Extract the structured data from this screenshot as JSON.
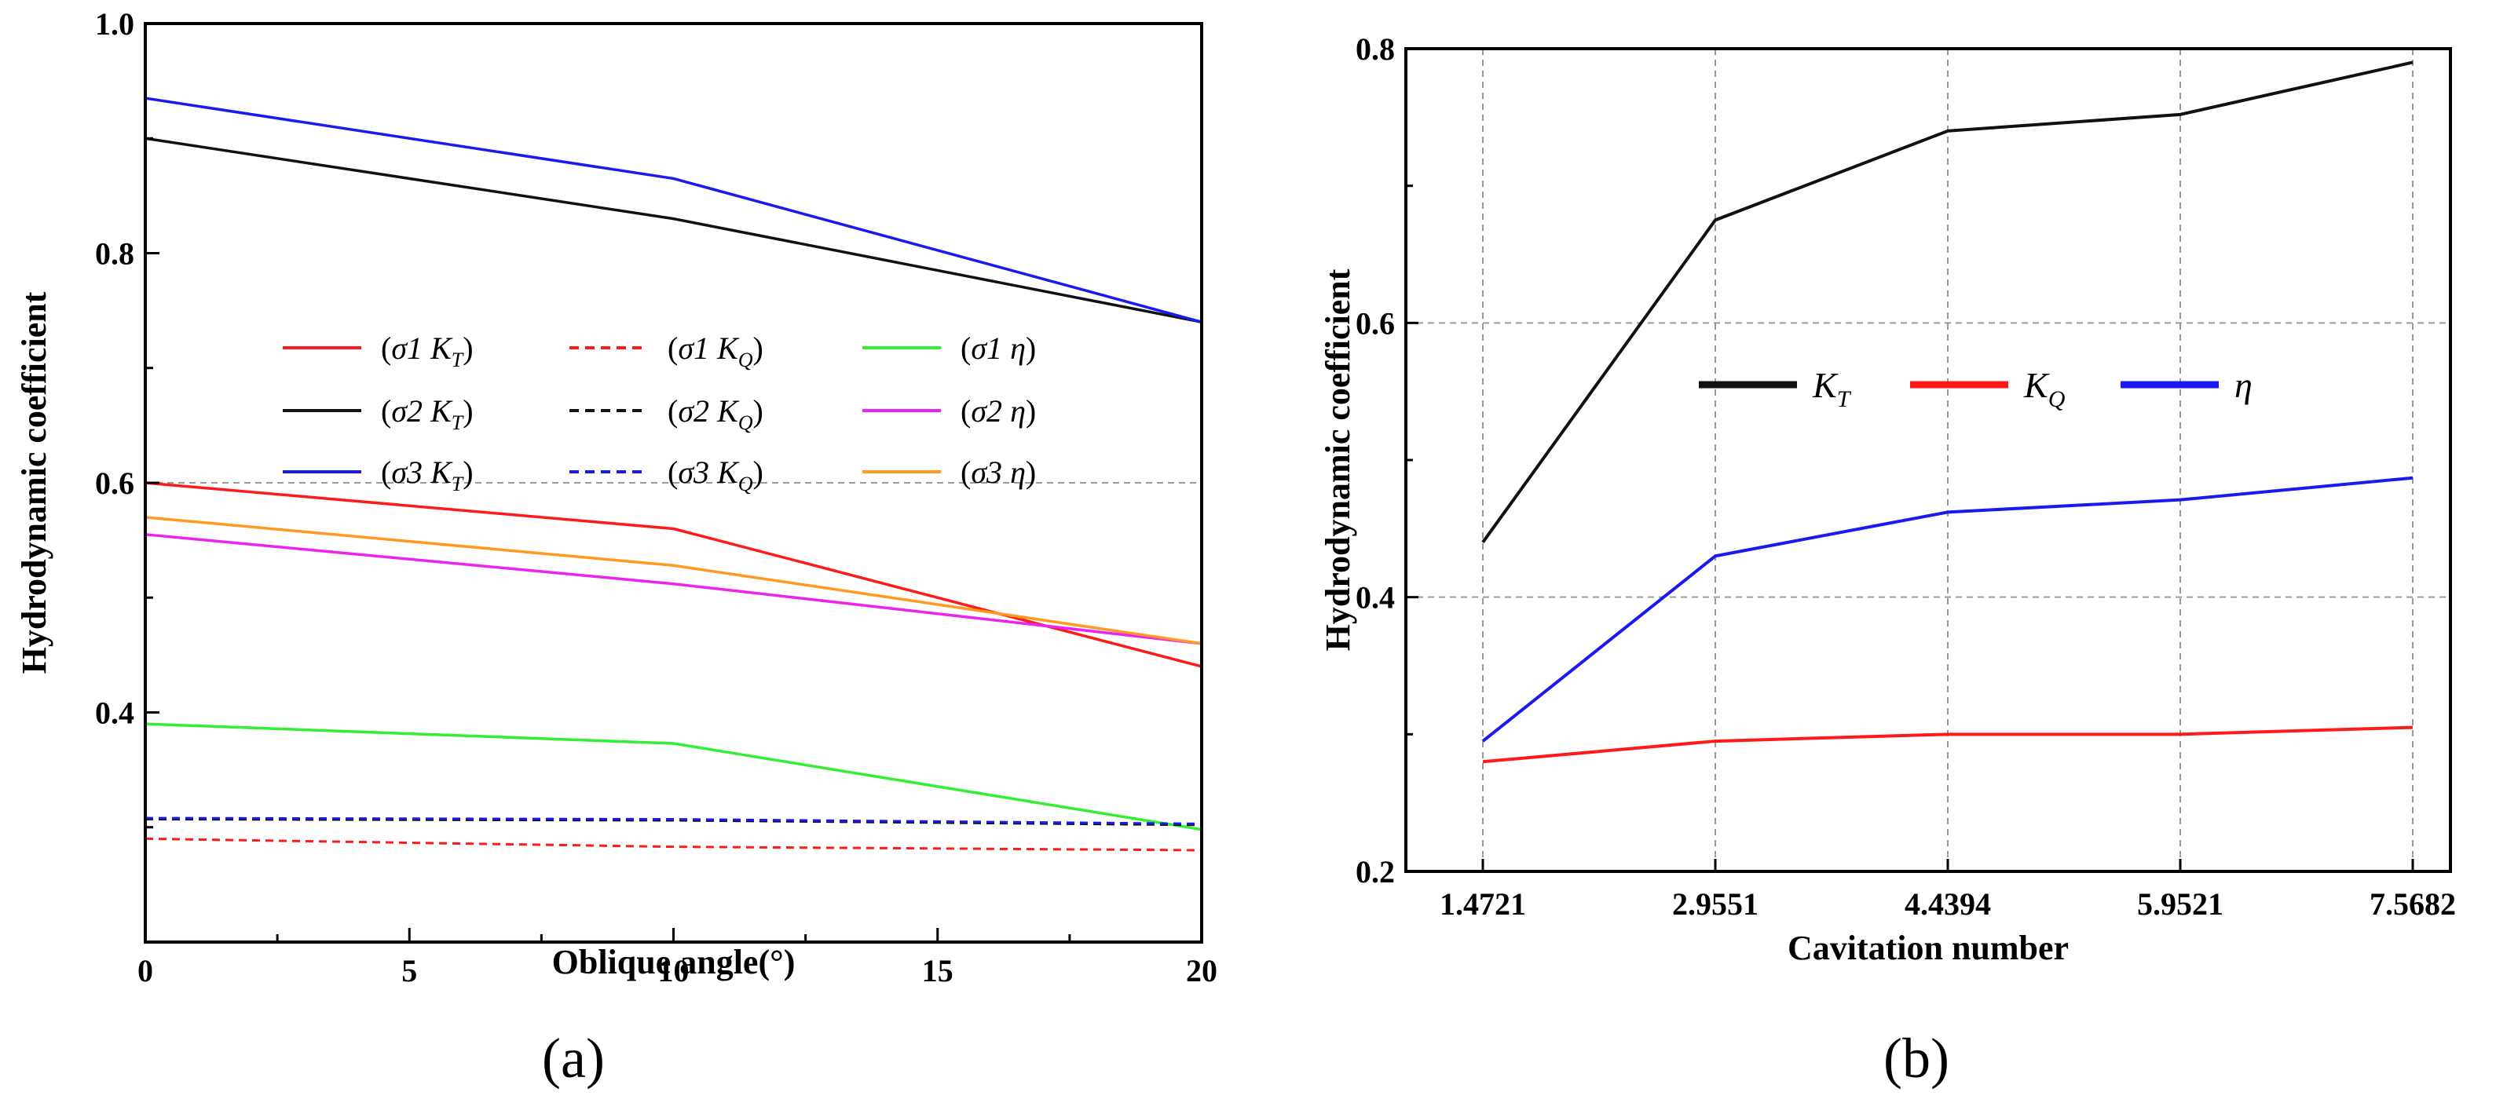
{
  "colors": {
    "red": "#ff1a1a",
    "black": "#111111",
    "blue": "#1a1aee",
    "green": "#33ee33",
    "magenta": "#ee22ee",
    "orange": "#ff9922",
    "gridline": "#9a9a9a"
  },
  "chart_data": [
    {
      "type": "line",
      "panel_label": "(a)",
      "xlabel": "Oblique angle(°)",
      "ylabel": "Hydrodynamic coefficient",
      "xlim": [
        0,
        20
      ],
      "ylim": [
        0.2,
        1.0
      ],
      "xticks": [
        0,
        5,
        10,
        15,
        20
      ],
      "xtick_labels": [
        "0",
        "5",
        "10",
        "15",
        "20"
      ],
      "yticks": [
        0.4,
        0.6,
        0.8,
        1.0
      ],
      "ytick_labels": [
        "0.4",
        "0.6",
        "0.8",
        "1.0"
      ],
      "grid": "dashed line at y=0.6",
      "legend_position": "center",
      "x": [
        0,
        10,
        20
      ],
      "series": [
        {
          "name": "(σ1 KT)",
          "sigma": "σ1",
          "var": "K",
          "sub": "T",
          "color": "red",
          "dash": false,
          "values": [
            0.6,
            0.56,
            0.44
          ]
        },
        {
          "name": "(σ1 KQ)",
          "sigma": "σ1",
          "var": "K",
          "sub": "Q",
          "color": "red",
          "dash": true,
          "values": [
            0.29,
            0.283,
            0.28
          ]
        },
        {
          "name": "(σ1 η)",
          "sigma": "σ1",
          "var": "η",
          "sub": "",
          "color": "green",
          "dash": false,
          "values": [
            0.39,
            0.373,
            0.298
          ]
        },
        {
          "name": "(σ2 KT)",
          "sigma": "σ2",
          "var": "K",
          "sub": "T",
          "color": "black",
          "dash": false,
          "values": [
            0.9,
            0.83,
            0.74
          ]
        },
        {
          "name": "(σ2 KQ)",
          "sigma": "σ2",
          "var": "K",
          "sub": "Q",
          "color": "black",
          "dash": true,
          "values": [
            0.307,
            0.306,
            0.302
          ]
        },
        {
          "name": "(σ2 η)",
          "sigma": "σ2",
          "var": "η",
          "sub": "",
          "color": "magenta",
          "dash": false,
          "values": [
            0.555,
            0.512,
            0.46
          ]
        },
        {
          "name": "(σ3 KT)",
          "sigma": "σ3",
          "var": "K",
          "sub": "T",
          "color": "blue",
          "dash": false,
          "values": [
            0.935,
            0.865,
            0.74
          ]
        },
        {
          "name": "(σ3 KQ)",
          "sigma": "σ3",
          "var": "K",
          "sub": "Q",
          "color": "blue",
          "dash": true,
          "values": [
            0.308,
            0.307,
            0.303
          ]
        },
        {
          "name": "(σ3 η)",
          "sigma": "σ3",
          "var": "η",
          "sub": "",
          "color": "orange",
          "dash": false,
          "values": [
            0.57,
            0.528,
            0.46
          ]
        }
      ]
    },
    {
      "type": "line",
      "panel_label": "(b)",
      "xlabel": "Cavitation number",
      "ylabel": "Hydrodynamic coefficient",
      "categories": [
        "1.4721",
        "2.9551",
        "4.4394",
        "5.9521",
        "7.5682"
      ],
      "ylim": [
        0.2,
        0.8
      ],
      "yticks": [
        0.2,
        0.4,
        0.6,
        0.8
      ],
      "ytick_labels": [
        "0.2",
        "0.4",
        "0.6",
        "0.8"
      ],
      "grid": "dashed at every tick",
      "legend_position": "center",
      "series": [
        {
          "name": "KT",
          "var": "K",
          "sub": "T",
          "color": "black",
          "values": [
            0.44,
            0.675,
            0.74,
            0.752,
            0.79
          ]
        },
        {
          "name": "KQ",
          "var": "K",
          "sub": "Q",
          "color": "red",
          "values": [
            0.28,
            0.295,
            0.3,
            0.3,
            0.305
          ]
        },
        {
          "name": "η",
          "var": "η",
          "sub": "",
          "color": "blue",
          "values": [
            0.295,
            0.43,
            0.462,
            0.471,
            0.487
          ]
        }
      ]
    }
  ]
}
